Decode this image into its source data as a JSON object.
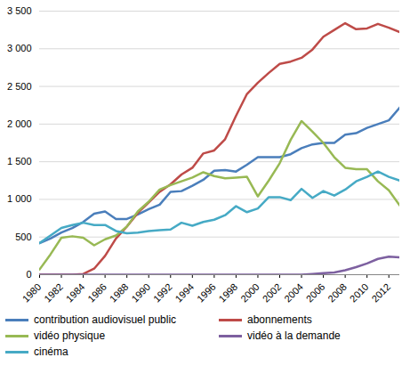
{
  "chart_data": {
    "type": "line",
    "x": [
      1980,
      1981,
      1982,
      1983,
      1984,
      1985,
      1986,
      1987,
      1988,
      1989,
      1990,
      1991,
      1992,
      1993,
      1994,
      1995,
      1996,
      1997,
      1998,
      1999,
      2000,
      2001,
      2002,
      2003,
      2004,
      2005,
      2006,
      2007,
      2008,
      2009,
      2010,
      2011,
      2012,
      2013
    ],
    "series": [
      {
        "name": "contribution audiovisuel public",
        "color": "#4a7ebb",
        "values": [
          420,
          480,
          560,
          620,
          700,
          810,
          840,
          740,
          740,
          800,
          870,
          930,
          1100,
          1110,
          1180,
          1260,
          1380,
          1390,
          1370,
          1460,
          1560,
          1560,
          1560,
          1600,
          1680,
          1730,
          1750,
          1750,
          1860,
          1880,
          1950,
          2000,
          2050,
          2220
        ]
      },
      {
        "name": "abonnements",
        "color": "#be4b48",
        "values": [
          0,
          0,
          0,
          0,
          10,
          80,
          250,
          480,
          640,
          820,
          960,
          1100,
          1200,
          1330,
          1420,
          1610,
          1650,
          1800,
          2110,
          2400,
          2550,
          2680,
          2800,
          2830,
          2880,
          2990,
          3160,
          3250,
          3340,
          3260,
          3270,
          3330,
          3280,
          3220
        ]
      },
      {
        "name": "vidéo physique",
        "color": "#98b954",
        "values": [
          70,
          270,
          490,
          510,
          490,
          390,
          470,
          520,
          640,
          840,
          970,
          1130,
          1190,
          1240,
          1290,
          1360,
          1310,
          1280,
          1290,
          1300,
          1040,
          1250,
          1480,
          1790,
          2040,
          1900,
          1750,
          1560,
          1420,
          1400,
          1400,
          1240,
          1120,
          920
        ]
      },
      {
        "name": "vidéo à la demande",
        "color": "#7d60a0",
        "values": [
          0,
          0,
          0,
          0,
          0,
          0,
          0,
          0,
          0,
          0,
          0,
          0,
          0,
          0,
          0,
          0,
          0,
          0,
          0,
          0,
          0,
          0,
          0,
          0,
          0,
          10,
          20,
          30,
          60,
          100,
          150,
          210,
          240,
          230
        ]
      },
      {
        "name": "cinéma",
        "color": "#46aac5",
        "values": [
          420,
          520,
          620,
          660,
          690,
          660,
          660,
          580,
          550,
          560,
          580,
          590,
          600,
          690,
          650,
          700,
          730,
          790,
          910,
          830,
          880,
          1030,
          1030,
          990,
          1140,
          1020,
          1110,
          1050,
          1130,
          1240,
          1300,
          1370,
          1300,
          1250
        ]
      }
    ],
    "xlim": [
      1980,
      2013
    ],
    "xticks": [
      1980,
      1982,
      1984,
      1986,
      1988,
      1990,
      1992,
      1994,
      1996,
      1998,
      2000,
      2002,
      2004,
      2006,
      2008,
      2010,
      2012
    ],
    "ylim": [
      0,
      3500
    ],
    "yticks": [
      0,
      500,
      {
        "value": 1000,
        "label": "1 000"
      },
      {
        "value": 1500,
        "label": "1 500"
      },
      {
        "value": 2000,
        "label": "2 000"
      },
      {
        "value": 2500,
        "label": "2 500"
      },
      {
        "value": 3000,
        "label": "3 000"
      },
      {
        "value": 3500,
        "label": "3 500"
      }
    ],
    "grid": true,
    "legend": "bottom"
  }
}
